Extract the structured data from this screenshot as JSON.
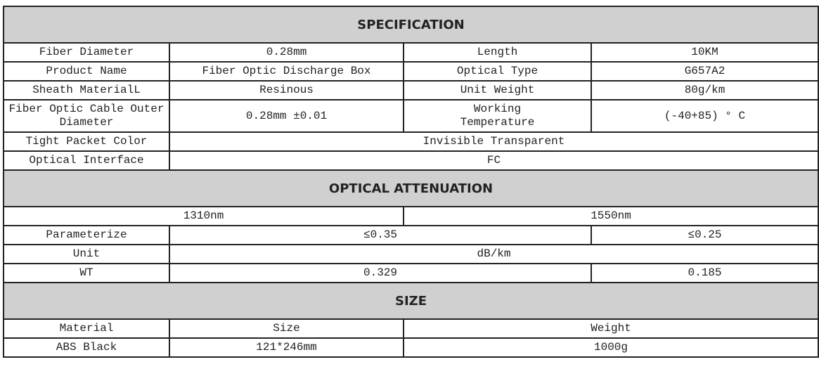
{
  "specification": {
    "title": "SPECIFICATION",
    "rows": [
      [
        "Fiber Diameter",
        "0.28mm",
        "Length",
        "10KM"
      ],
      [
        "Product Name",
        "Fiber Optic Discharge Box",
        "Optical Type",
        "G657A2"
      ],
      [
        "Sheath MaterialL",
        "Resinous",
        "Unit Weight",
        "80g/km"
      ],
      [
        "Fiber Optic Cable Outer Diameter",
        "0.28mm ±0.01",
        "Working Temperature",
        "(-40+85) ° C"
      ]
    ],
    "tight_packet_color": {
      "label": "Tight Packet Color",
      "value": "Invisible Transparent"
    },
    "optical_interface": {
      "label": "Optical Interface",
      "value": "FC"
    }
  },
  "optical_attenuation": {
    "title": "OPTICAL ATTENUATION",
    "wavelengths": [
      "1310nm",
      "1550nm"
    ],
    "parameterize": {
      "label": "Parameterize",
      "v1310": "≤0.35",
      "v1550": "≤0.25"
    },
    "unit": {
      "label": "Unit",
      "value": "dB/km"
    },
    "wt": {
      "label": "WT",
      "v1310": "0.329",
      "v1550": "0.185"
    }
  },
  "size": {
    "title": "SIZE",
    "headers": [
      "Material",
      "Size",
      "Weight"
    ],
    "row": [
      "ABS Black",
      "121*246mm",
      "1000g"
    ]
  }
}
